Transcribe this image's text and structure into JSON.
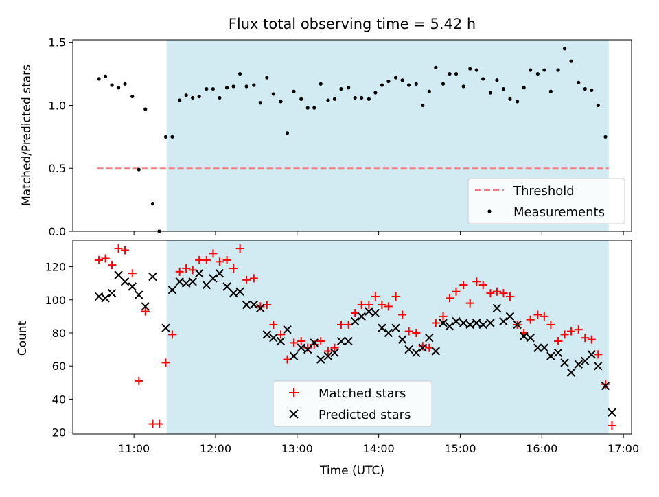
{
  "title": "Flux total observing time = 5.42 h",
  "colors": {
    "band": "#add8e6",
    "threshold": "#f08080",
    "measurement": "#000000",
    "matched": "#ff0000",
    "predicted": "#000000"
  },
  "chart_data": [
    {
      "type": "scatter",
      "ylabel": "Matched/Predicted stars",
      "xlim": [
        10.25,
        17.1
      ],
      "ylim": [
        0,
        1.52
      ],
      "yticks": [
        {
          "v": 0.0,
          "label": "0.0"
        },
        {
          "v": 0.5,
          "label": "0.5"
        },
        {
          "v": 1.0,
          "label": "1.0"
        },
        {
          "v": 1.5,
          "label": "1.5"
        }
      ],
      "shaded_band": [
        11.4,
        16.82
      ],
      "threshold": {
        "y": 0.5,
        "x_range": [
          10.55,
          16.82
        ]
      },
      "legend": {
        "position": "lower right",
        "entries": [
          {
            "label": "Threshold",
            "marker": "dashed-line"
          },
          {
            "label": "Measurements",
            "marker": "dot"
          }
        ]
      },
      "series": [
        {
          "name": "Measurements",
          "points": [
            [
              10.57,
              1.21
            ],
            [
              10.65,
              1.23
            ],
            [
              10.73,
              1.16
            ],
            [
              10.81,
              1.14
            ],
            [
              10.89,
              1.17
            ],
            [
              10.98,
              1.07
            ],
            [
              11.06,
              0.49
            ],
            [
              11.14,
              0.97
            ],
            [
              11.23,
              0.22
            ],
            [
              11.31,
              0.0
            ],
            [
              11.39,
              0.75
            ],
            [
              11.47,
              0.75
            ],
            [
              11.56,
              1.04
            ],
            [
              11.64,
              1.08
            ],
            [
              11.72,
              1.06
            ],
            [
              11.8,
              1.07
            ],
            [
              11.89,
              1.13
            ],
            [
              11.97,
              1.13
            ],
            [
              12.05,
              1.06
            ],
            [
              12.14,
              1.14
            ],
            [
              12.22,
              1.15
            ],
            [
              12.3,
              1.25
            ],
            [
              12.38,
              1.15
            ],
            [
              12.47,
              1.16
            ],
            [
              12.55,
              1.02
            ],
            [
              12.63,
              1.22
            ],
            [
              12.71,
              1.09
            ],
            [
              12.8,
              1.03
            ],
            [
              12.88,
              0.78
            ],
            [
              12.96,
              1.11
            ],
            [
              13.05,
              1.05
            ],
            [
              13.13,
              0.98
            ],
            [
              13.21,
              0.98
            ],
            [
              13.29,
              1.17
            ],
            [
              13.38,
              1.04
            ],
            [
              13.46,
              1.05
            ],
            [
              13.54,
              1.13
            ],
            [
              13.63,
              1.14
            ],
            [
              13.71,
              1.06
            ],
            [
              13.79,
              1.06
            ],
            [
              13.88,
              1.05
            ],
            [
              13.96,
              1.1
            ],
            [
              14.04,
              1.16
            ],
            [
              14.12,
              1.19
            ],
            [
              14.21,
              1.22
            ],
            [
              14.29,
              1.2
            ],
            [
              14.37,
              1.16
            ],
            [
              14.46,
              1.17
            ],
            [
              14.54,
              1.0
            ],
            [
              14.62,
              1.11
            ],
            [
              14.7,
              1.3
            ],
            [
              14.79,
              1.17
            ],
            [
              14.87,
              1.25
            ],
            [
              14.95,
              1.25
            ],
            [
              15.04,
              1.15
            ],
            [
              15.12,
              1.29
            ],
            [
              15.2,
              1.28
            ],
            [
              15.28,
              1.21
            ],
            [
              15.37,
              1.1
            ],
            [
              15.45,
              1.2
            ],
            [
              15.53,
              1.13
            ],
            [
              15.61,
              1.05
            ],
            [
              15.7,
              1.03
            ],
            [
              15.78,
              1.14
            ],
            [
              15.86,
              1.28
            ],
            [
              15.95,
              1.25
            ],
            [
              16.03,
              1.28
            ],
            [
              16.11,
              1.11
            ],
            [
              16.2,
              1.28
            ],
            [
              16.28,
              1.45
            ],
            [
              16.36,
              1.35
            ],
            [
              16.45,
              1.18
            ],
            [
              16.53,
              1.13
            ],
            [
              16.61,
              1.12
            ],
            [
              16.69,
              1.0
            ],
            [
              16.78,
              0.75
            ]
          ]
        }
      ]
    },
    {
      "type": "scatter",
      "xlabel": "Time (UTC)",
      "ylabel": "Count",
      "xlim": [
        10.25,
        17.1
      ],
      "ylim": [
        19,
        136
      ],
      "xticks": [
        {
          "v": 11,
          "label": "11:00"
        },
        {
          "v": 12,
          "label": "12:00"
        },
        {
          "v": 13,
          "label": "13:00"
        },
        {
          "v": 14,
          "label": "14:00"
        },
        {
          "v": 15,
          "label": "15:00"
        },
        {
          "v": 16,
          "label": "16:00"
        },
        {
          "v": 17,
          "label": "17:00"
        }
      ],
      "yticks": [
        {
          "v": 20,
          "label": "20"
        },
        {
          "v": 40,
          "label": "40"
        },
        {
          "v": 60,
          "label": "60"
        },
        {
          "v": 80,
          "label": "80"
        },
        {
          "v": 100,
          "label": "100"
        },
        {
          "v": 120,
          "label": "120"
        }
      ],
      "shaded_band": [
        11.4,
        16.82
      ],
      "legend": {
        "position": "lower center",
        "entries": [
          {
            "label": "Matched stars",
            "marker": "plus"
          },
          {
            "label": "Predicted stars",
            "marker": "x"
          }
        ]
      },
      "series": [
        {
          "name": "Matched stars",
          "points": [
            [
              10.57,
              124
            ],
            [
              10.65,
              125
            ],
            [
              10.73,
              121
            ],
            [
              10.81,
              131
            ],
            [
              10.89,
              130
            ],
            [
              10.98,
              116
            ],
            [
              11.06,
              51
            ],
            [
              11.14,
              93
            ],
            [
              11.23,
              25
            ],
            [
              11.31,
              25
            ],
            [
              11.39,
              62
            ],
            [
              11.47,
              79
            ],
            [
              11.56,
              117
            ],
            [
              11.64,
              119
            ],
            [
              11.72,
              118
            ],
            [
              11.8,
              124
            ],
            [
              11.89,
              124
            ],
            [
              11.97,
              128
            ],
            [
              12.05,
              123
            ],
            [
              12.14,
              124
            ],
            [
              12.22,
              119
            ],
            [
              12.3,
              131
            ],
            [
              12.38,
              112
            ],
            [
              12.47,
              113
            ],
            [
              12.55,
              96
            ],
            [
              12.63,
              97
            ],
            [
              12.71,
              85
            ],
            [
              12.8,
              79
            ],
            [
              12.88,
              64
            ],
            [
              12.96,
              74
            ],
            [
              13.05,
              75
            ],
            [
              13.13,
              71
            ],
            [
              13.21,
              73
            ],
            [
              13.29,
              75
            ],
            [
              13.38,
              69
            ],
            [
              13.46,
              71
            ],
            [
              13.54,
              85
            ],
            [
              13.63,
              85
            ],
            [
              13.71,
              92
            ],
            [
              13.79,
              97
            ],
            [
              13.88,
              97
            ],
            [
              13.96,
              102
            ],
            [
              14.04,
              97
            ],
            [
              14.12,
              96
            ],
            [
              14.21,
              102
            ],
            [
              14.29,
              91
            ],
            [
              14.37,
              81
            ],
            [
              14.46,
              80
            ],
            [
              14.54,
              72
            ],
            [
              14.62,
              71
            ],
            [
              14.7,
              86
            ],
            [
              14.79,
              90
            ],
            [
              14.87,
              101
            ],
            [
              14.95,
              105
            ],
            [
              15.04,
              109
            ],
            [
              15.12,
              98
            ],
            [
              15.2,
              111
            ],
            [
              15.28,
              109
            ],
            [
              15.37,
              104
            ],
            [
              15.45,
              105
            ],
            [
              15.53,
              104
            ],
            [
              15.61,
              102
            ],
            [
              15.7,
              85
            ],
            [
              15.78,
              80
            ],
            [
              15.86,
              88
            ],
            [
              15.95,
              91
            ],
            [
              16.03,
              90
            ],
            [
              16.11,
              85
            ],
            [
              16.2,
              75
            ],
            [
              16.28,
              79
            ],
            [
              16.36,
              81
            ],
            [
              16.45,
              82
            ],
            [
              16.53,
              77
            ],
            [
              16.61,
              76
            ],
            [
              16.69,
              67
            ],
            [
              16.78,
              49
            ],
            [
              16.86,
              24
            ]
          ]
        },
        {
          "name": "Predicted stars",
          "points": [
            [
              10.57,
              102
            ],
            [
              10.65,
              101
            ],
            [
              10.73,
              104
            ],
            [
              10.81,
              115
            ],
            [
              10.89,
              111
            ],
            [
              10.98,
              108
            ],
            [
              11.06,
              103
            ],
            [
              11.14,
              96
            ],
            [
              11.23,
              114
            ],
            [
              11.39,
              83
            ],
            [
              11.47,
              106
            ],
            [
              11.56,
              111
            ],
            [
              11.64,
              110
            ],
            [
              11.72,
              111
            ],
            [
              11.8,
              116
            ],
            [
              11.89,
              109
            ],
            [
              11.97,
              113
            ],
            [
              12.05,
              116
            ],
            [
              12.14,
              108
            ],
            [
              12.22,
              104
            ],
            [
              12.3,
              105
            ],
            [
              12.38,
              97
            ],
            [
              12.47,
              97
            ],
            [
              12.55,
              95
            ],
            [
              12.63,
              79
            ],
            [
              12.71,
              77
            ],
            [
              12.8,
              75
            ],
            [
              12.88,
              82
            ],
            [
              12.96,
              66
            ],
            [
              13.05,
              71
            ],
            [
              13.13,
              70
            ],
            [
              13.21,
              74
            ],
            [
              13.29,
              64
            ],
            [
              13.38,
              66
            ],
            [
              13.46,
              68
            ],
            [
              13.54,
              75
            ],
            [
              13.63,
              75
            ],
            [
              13.71,
              87
            ],
            [
              13.79,
              90
            ],
            [
              13.88,
              93
            ],
            [
              13.96,
              92
            ],
            [
              14.04,
              83
            ],
            [
              14.12,
              80
            ],
            [
              14.21,
              83
            ],
            [
              14.29,
              76
            ],
            [
              14.37,
              70
            ],
            [
              14.46,
              68
            ],
            [
              14.54,
              71
            ],
            [
              14.62,
              77
            ],
            [
              14.7,
              69
            ],
            [
              14.79,
              86
            ],
            [
              14.87,
              84
            ],
            [
              14.95,
              87
            ],
            [
              15.04,
              86
            ],
            [
              15.12,
              85
            ],
            [
              15.2,
              86
            ],
            [
              15.28,
              85
            ],
            [
              15.37,
              86
            ],
            [
              15.45,
              95
            ],
            [
              15.53,
              87
            ],
            [
              15.61,
              90
            ],
            [
              15.7,
              85
            ],
            [
              15.78,
              78
            ],
            [
              15.86,
              77
            ],
            [
              15.95,
              71
            ],
            [
              16.03,
              71
            ],
            [
              16.11,
              66
            ],
            [
              16.2,
              68
            ],
            [
              16.28,
              62
            ],
            [
              16.36,
              56
            ],
            [
              16.45,
              61
            ],
            [
              16.53,
              63
            ],
            [
              16.61,
              67
            ],
            [
              16.69,
              60
            ],
            [
              16.78,
              48
            ],
            [
              16.86,
              32
            ]
          ]
        }
      ]
    }
  ]
}
